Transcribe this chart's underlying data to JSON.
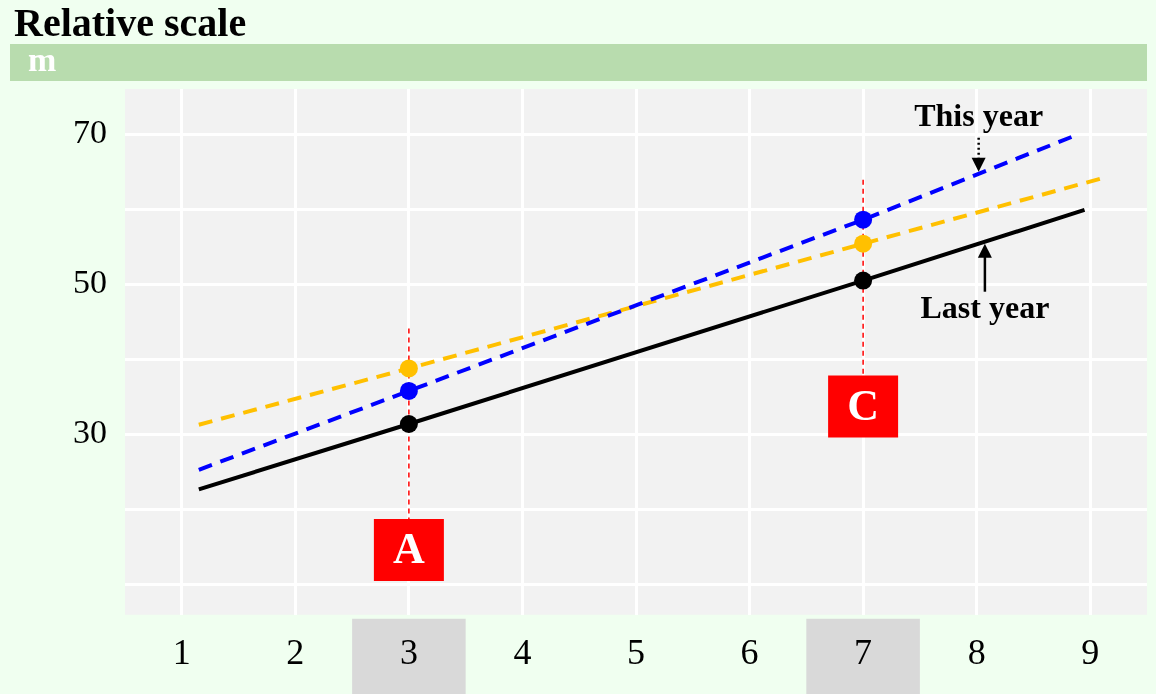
{
  "chart_data": {
    "type": "line",
    "title": "Relative scale",
    "ylabel": "m",
    "xlim": [
      0.5,
      9.5
    ],
    "ylim": [
      6,
      76
    ],
    "xticks": [
      1,
      2,
      3,
      4,
      5,
      6,
      7,
      8,
      9
    ],
    "yticks": [
      {
        "value": 10,
        "label": null
      },
      {
        "value": 20,
        "label": null
      },
      30,
      {
        "value": 40,
        "label": null
      },
      50,
      {
        "value": 60,
        "label": null
      },
      70
    ],
    "grid": true,
    "marker": "circle",
    "series": [
      {
        "name": "Last year",
        "color": "#000000",
        "line_style": "solid",
        "marker": "none",
        "x": [
          1.15,
          3,
          7,
          8.95
        ],
        "values": [
          22.7,
          31.4,
          50.5,
          59.9
        ]
      },
      {
        "name": "This year",
        "color": "#0000ff",
        "line_style": "dashed",
        "marker": "none",
        "x": [
          1.15,
          3,
          7,
          8.85
        ],
        "values": [
          25.3,
          35.8,
          58.6,
          69.7
        ]
      },
      {
        "color": "#ffc000",
        "line_style": "dashed",
        "marker": "none",
        "x": [
          1.15,
          3,
          7,
          9.1
        ],
        "values": [
          31.3,
          38.8,
          55.4,
          64.1
        ]
      },
      {
        "type": "scatter",
        "color": "#000000",
        "x": [
          3,
          7
        ],
        "values": [
          31.4,
          50.5
        ]
      },
      {
        "type": "scatter",
        "color": "#0000ff",
        "x": [
          3,
          7
        ],
        "values": [
          35.8,
          58.6
        ]
      },
      {
        "type": "scatter",
        "color": "#ffc000",
        "x": [
          3,
          7
        ],
        "values": [
          38.8,
          55.4
        ]
      }
    ],
    "ref_lines": [
      {
        "axis": "x",
        "value": 3,
        "label": "A",
        "color": "#ff0000",
        "line_style": "dashed"
      },
      {
        "axis": "x",
        "value": 7,
        "label": "C",
        "color": "#ff0000",
        "line_style": "dashed"
      }
    ]
  }
}
